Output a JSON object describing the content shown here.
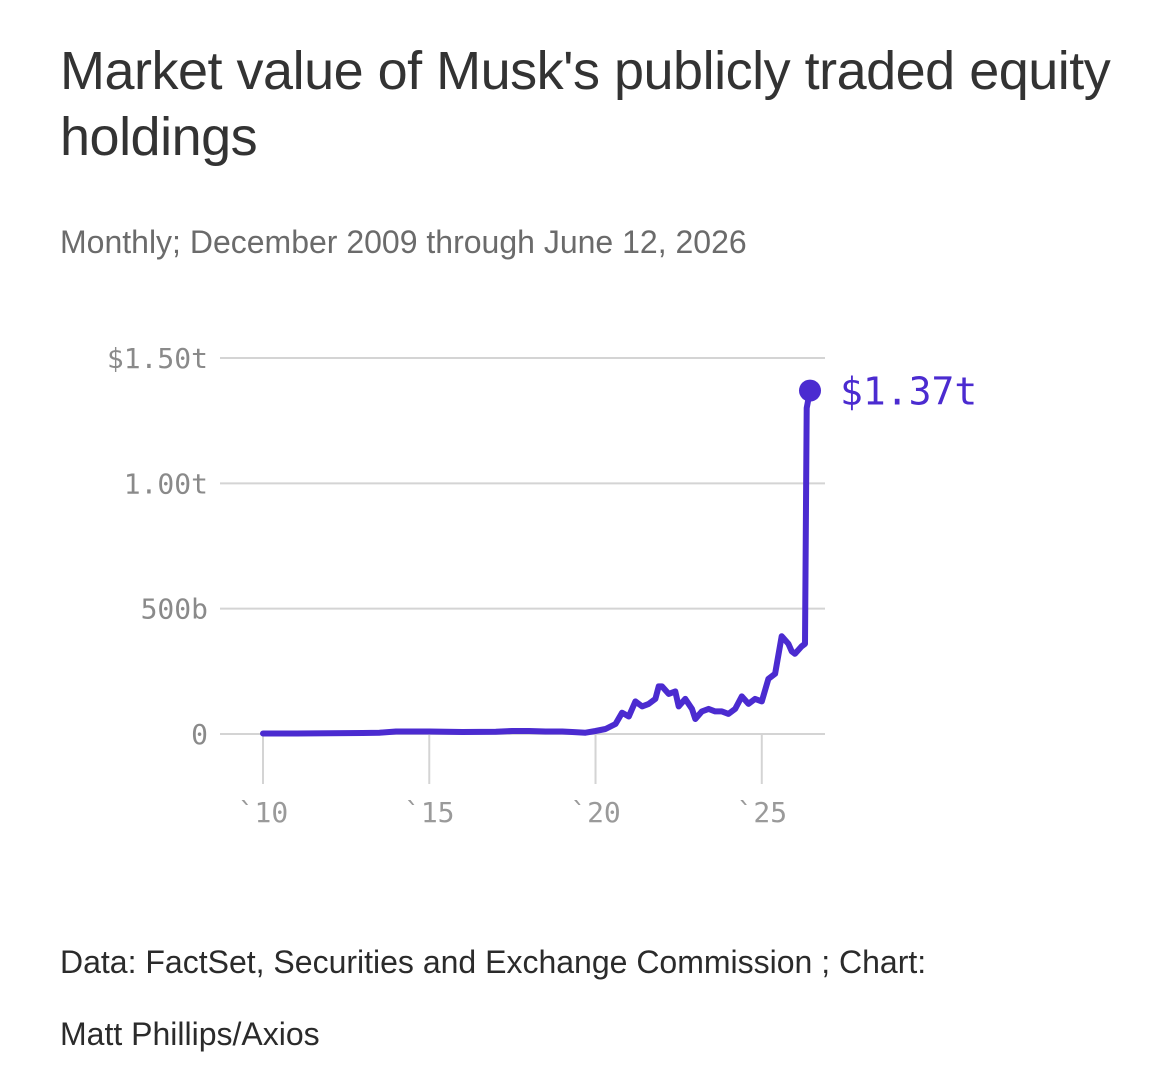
{
  "chart_data": {
    "type": "line",
    "title": "Market value of Musk's publicly traded equity holdings",
    "subtitle": "Monthly; December 2009 through June 12, 2026",
    "xlabel": "",
    "ylabel": "",
    "ylim": [
      0,
      1.5
    ],
    "y_unit": "trillion USD",
    "y_ticks": [
      {
        "value": 1.5,
        "label": "$1.50t"
      },
      {
        "value": 1.0,
        "label": "1.00t"
      },
      {
        "value": 0.5,
        "label": "500b"
      },
      {
        "value": 0.0,
        "label": "0"
      }
    ],
    "x_ticks": [
      {
        "value": 2010,
        "label": "`10"
      },
      {
        "value": 2015,
        "label": "`15"
      },
      {
        "value": 2020,
        "label": "`20"
      },
      {
        "value": 2025,
        "label": "`25"
      }
    ],
    "grid": true,
    "line_color": "#4b2bd0",
    "end_label": "$1.37t",
    "series": [
      {
        "x": [
          2010.0,
          2011.0,
          2012.0,
          2013.0,
          2013.5,
          2014.0,
          2015.0,
          2016.0,
          2017.0,
          2017.5,
          2018.0,
          2018.5,
          2019.0,
          2019.3,
          2019.7,
          2020.0,
          2020.3,
          2020.6,
          2020.8,
          2021.0,
          2021.2,
          2021.4,
          2021.6,
          2021.8,
          2021.9,
          2022.0,
          2022.2,
          2022.4,
          2022.5,
          2022.7,
          2022.9,
          2023.0,
          2023.2,
          2023.4,
          2023.6,
          2023.8,
          2024.0,
          2024.2,
          2024.4,
          2024.6,
          2024.8,
          2025.0,
          2025.2,
          2025.4,
          2025.6,
          2025.8,
          2025.9,
          2026.0,
          2026.2,
          2026.3,
          2026.35,
          2026.45
        ],
        "y": [
          0.002,
          0.002,
          0.003,
          0.004,
          0.005,
          0.01,
          0.01,
          0.008,
          0.009,
          0.012,
          0.012,
          0.01,
          0.01,
          0.008,
          0.005,
          0.012,
          0.02,
          0.04,
          0.085,
          0.07,
          0.13,
          0.11,
          0.12,
          0.14,
          0.19,
          0.19,
          0.16,
          0.17,
          0.11,
          0.14,
          0.1,
          0.06,
          0.09,
          0.1,
          0.09,
          0.09,
          0.08,
          0.1,
          0.15,
          0.12,
          0.14,
          0.13,
          0.22,
          0.24,
          0.39,
          0.36,
          0.33,
          0.32,
          0.35,
          0.36,
          1.3,
          1.37
        ]
      }
    ]
  },
  "source_line1": "Data: FactSet, Securities and Exchange Commission ; Chart:",
  "source_line2": "Matt Phillips/Axios"
}
